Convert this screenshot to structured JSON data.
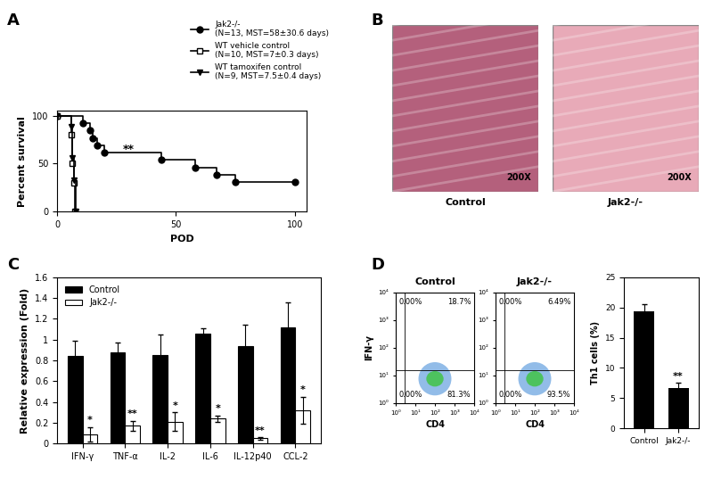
{
  "chart_data": [
    {
      "type": "step",
      "panel": "A",
      "x_label": "POD",
      "y_label": "Percent survival",
      "xlim": [
        0,
        105
      ],
      "ylim": [
        0,
        105
      ],
      "xticks": [
        0,
        50,
        100
      ],
      "yticks": [
        0,
        50,
        100
      ],
      "legend": "upper right",
      "series": [
        {
          "name": "Jak2-/-\n(N=13, MST=58±30.6 days)",
          "color": "#000000",
          "marker": "circle",
          "x": [
            0,
            11,
            14,
            15,
            17,
            20,
            44,
            58,
            67,
            75,
            100
          ],
          "values": [
            100,
            92.3,
            84.6,
            76.9,
            69.2,
            61.5,
            53.8,
            46.2,
            38.5,
            30.8,
            30.8
          ]
        },
        {
          "name": "WT vehicle control\n(N=10, MST=7±0.3 days)",
          "color": "#000000",
          "marker": "open_square",
          "x": [
            0,
            6,
            6.5,
            7,
            7.5
          ],
          "values": [
            100,
            80,
            50,
            30,
            0
          ]
        },
        {
          "name": "WT tamoxifen control\n(N=9, MST=7.5±0.4 days)",
          "color": "#000000",
          "marker": "triangle_down",
          "x": [
            0,
            6,
            6.5,
            7,
            8
          ],
          "values": [
            100,
            89,
            56,
            33,
            0
          ]
        }
      ],
      "annotations": [
        {
          "text": "**",
          "x": 30,
          "y": 62
        }
      ]
    },
    {
      "type": "image",
      "panel": "B",
      "images": [
        {
          "label": "Control",
          "magnification": "200X",
          "color": "#b4607c"
        },
        {
          "label": "Jak2-/-",
          "magnification": "200X",
          "color": "#e8aab8"
        }
      ]
    },
    {
      "type": "bar",
      "panel": "C",
      "y_label": "Relative expression (Fold)",
      "categories": [
        "IFN-γ",
        "TNF-α",
        "IL-2",
        "IL-6",
        "IL-12p40",
        "CCL-2"
      ],
      "ylim": [
        0,
        1.6
      ],
      "yticks": [
        0,
        0.2,
        0.4,
        0.6,
        0.8,
        1,
        1.2,
        1.4,
        1.6
      ],
      "legend": "upper left",
      "series": [
        {
          "name": "Control",
          "color": "#000000",
          "values": [
            0.84,
            0.88,
            0.85,
            1.06,
            0.94,
            1.12
          ],
          "errors": [
            0.15,
            0.09,
            0.2,
            0.05,
            0.2,
            0.24
          ]
        },
        {
          "name": "Jak2-/-",
          "color": "#ffffff",
          "values": [
            0.09,
            0.17,
            0.21,
            0.24,
            0.05,
            0.32
          ],
          "errors": [
            0.07,
            0.05,
            0.09,
            0.03,
            0.01,
            0.13
          ],
          "significance": [
            "*",
            "**",
            "*",
            "*",
            "**",
            "*"
          ]
        }
      ]
    },
    {
      "type": "flow",
      "panel": "D",
      "title": "Control",
      "x_label": "CD4",
      "y_label": "IFN-γ",
      "log": true,
      "xlim": [
        1,
        10000
      ],
      "ylim": [
        1,
        10000
      ],
      "xticks": [
        {
          "value": 1,
          "label": "10⁰"
        },
        {
          "value": 10,
          "label": "10¹"
        },
        {
          "value": 100,
          "label": "10²"
        },
        {
          "value": 1000,
          "label": "10³"
        },
        {
          "value": 10000,
          "label": "10⁴"
        }
      ],
      "yticks": [
        {
          "value": 1,
          "label": "10⁰"
        },
        {
          "value": 10,
          "label": "10¹"
        },
        {
          "value": 100,
          "label": "10²"
        },
        {
          "value": 1000,
          "label": "10³"
        },
        {
          "value": 10000,
          "label": "10⁴"
        }
      ],
      "gate": {
        "x": 3,
        "y": 16
      },
      "quadrants": {
        "values": [
          0.0,
          18.7,
          0.0,
          81.3
        ],
        "value_labels": [
          "0.00%",
          "18.7%",
          "0.00%",
          "81.3%"
        ]
      }
    },
    {
      "type": "flow",
      "title": "Jak2-/-",
      "x_label": "CD4",
      "log": true,
      "xlim": [
        1,
        10000
      ],
      "ylim": [
        1,
        10000
      ],
      "xticks": [
        {
          "value": 1,
          "label": "10⁰"
        },
        {
          "value": 10,
          "label": "10¹"
        },
        {
          "value": 100,
          "label": "10²"
        },
        {
          "value": 1000,
          "label": "10³"
        },
        {
          "value": 10000,
          "label": "10⁴"
        }
      ],
      "yticks": [
        {
          "value": 1,
          "label": "10⁰"
        },
        {
          "value": 10,
          "label": "10¹"
        },
        {
          "value": 100,
          "label": "10²"
        },
        {
          "value": 1000,
          "label": "10³"
        },
        {
          "value": 10000,
          "label": "10⁴"
        }
      ],
      "gate": {
        "x": 3,
        "y": 16
      },
      "quadrants": {
        "values": [
          0.0,
          6.49,
          0.0,
          93.5
        ],
        "value_labels": [
          "0.00%",
          "6.49%",
          "0.00%",
          "93.5%"
        ]
      }
    },
    {
      "type": "bar",
      "y_label": "Th1 cells (%)",
      "categories": [
        "Control",
        "Jak2-/-"
      ],
      "values": [
        19.3,
        6.7
      ],
      "errors": [
        1.2,
        0.9
      ],
      "color": "#000000",
      "significance": [
        null,
        "**"
      ],
      "ylim": [
        0,
        25
      ],
      "yticks": [
        0,
        5,
        10,
        15,
        20,
        25
      ]
    }
  ]
}
